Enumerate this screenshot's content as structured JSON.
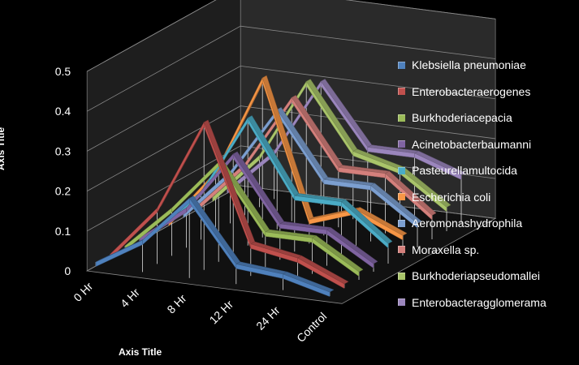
{
  "chart_data": {
    "type": "line",
    "variant": "3d-line",
    "categories": [
      "0 Hr",
      "4 Hr",
      "8 Hr",
      "12 Hr",
      "24 Hr",
      "Control"
    ],
    "xlabel": "Axis Title",
    "ylabel": "Axis Title",
    "ylim": [
      0,
      0.5
    ],
    "yticks": [
      "0",
      "0.1",
      "0.2",
      "0.3",
      "0.4",
      "0.5"
    ],
    "grid": true,
    "legend_position": "right",
    "series": [
      {
        "name": "Klebsiella pneumoniae",
        "color": "#4f81bd",
        "values": [
          0.01,
          0.08,
          0.2,
          0.05,
          0.04,
          0.01
        ]
      },
      {
        "name": "Enterobacteraerogenes",
        "color": "#c0504d",
        "values": [
          0.01,
          0.14,
          0.37,
          0.08,
          0.06,
          0.01
        ]
      },
      {
        "name": "Burkhoderiacepacia",
        "color": "#9bbb59",
        "values": [
          0.01,
          0.12,
          0.25,
          0.09,
          0.09,
          0.02
        ]
      },
      {
        "name": "Acinetobacterbaumanni",
        "color": "#8064a2",
        "values": [
          0.01,
          0.1,
          0.25,
          0.09,
          0.09,
          0.02
        ]
      },
      {
        "name": "Pasteurellamultocida",
        "color": "#4bacc6",
        "values": [
          0.01,
          0.12,
          0.32,
          0.14,
          0.14,
          0.05
        ]
      },
      {
        "name": "Escherichia coli",
        "color": "#f79646",
        "values": [
          0.01,
          0.15,
          0.4,
          0.06,
          0.1,
          0.05
        ]
      },
      {
        "name": "Aeromonashydrophila",
        "color": "#7c9fd0",
        "values": [
          0.01,
          0.13,
          0.3,
          0.14,
          0.14,
          0.06
        ]
      },
      {
        "name": "Moraxella sp.",
        "color": "#d4807c",
        "values": [
          0.01,
          0.13,
          0.31,
          0.15,
          0.15,
          0.06
        ]
      },
      {
        "name": "Burkhoderiapseudomallei",
        "color": "#a9c46a",
        "values": [
          0.01,
          0.13,
          0.33,
          0.17,
          0.14,
          0.06
        ]
      },
      {
        "name": "Enterobacteragglomerama",
        "color": "#9b86bd",
        "values": [
          0.01,
          0.12,
          0.31,
          0.16,
          0.16,
          0.12
        ]
      }
    ]
  }
}
